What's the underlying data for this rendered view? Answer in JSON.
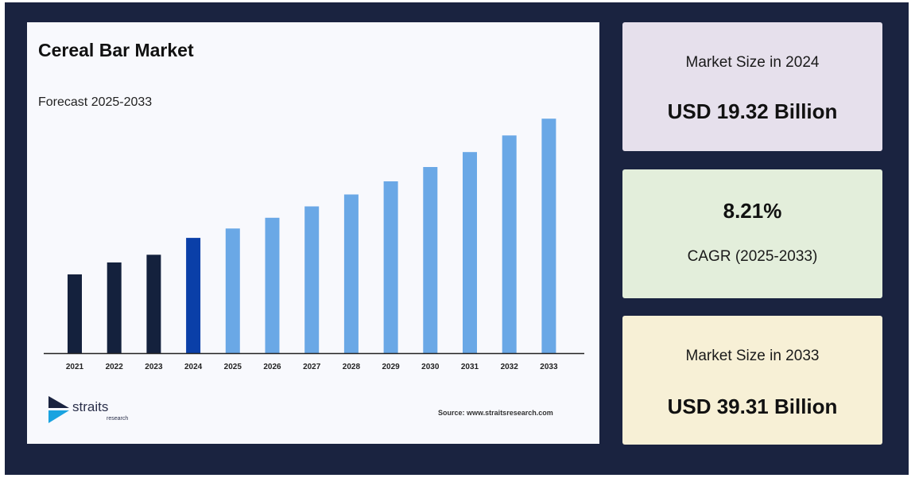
{
  "chart_data": {
    "type": "bar",
    "title": "Cereal Bar Market",
    "subtitle": "Forecast 2025-2033",
    "categories": [
      "2021",
      "2022",
      "2023",
      "2024",
      "2025",
      "2026",
      "2027",
      "2028",
      "2029",
      "2030",
      "2031",
      "2032",
      "2033"
    ],
    "values": [
      13.2,
      15.2,
      16.5,
      19.32,
      20.9,
      22.7,
      24.6,
      26.6,
      28.8,
      31.2,
      33.7,
      36.5,
      39.31
    ],
    "value_unit": "USD Billion",
    "colors": [
      "#14213d",
      "#14213d",
      "#14213d",
      "#0a3fa8",
      "#6aa8e6",
      "#6aa8e6",
      "#6aa8e6",
      "#6aa8e6",
      "#6aa8e6",
      "#6aa8e6",
      "#6aa8e6",
      "#6aa8e6",
      "#6aa8e6"
    ],
    "ylim": [
      0,
      40
    ],
    "xlabel": "",
    "ylabel": "",
    "grid": false,
    "axis_color": "#222222"
  },
  "branding": {
    "logo_text": "straits",
    "logo_subtext": "research",
    "logo_icon": "straits-arrow-logo-icon",
    "source_text": "Source: www.straitsresearch.com"
  },
  "stats": {
    "card1": {
      "label": "Market Size in 2024",
      "value": "USD 19.32 Billion",
      "color": "#e6e0ec"
    },
    "card2": {
      "value": "8.21%",
      "label": "CAGR (2025-2033)",
      "color": "#e3eedb"
    },
    "card3": {
      "label": "Market Size in 2033",
      "value": "USD 39.31 Billion",
      "color": "#f7f0d6"
    }
  }
}
